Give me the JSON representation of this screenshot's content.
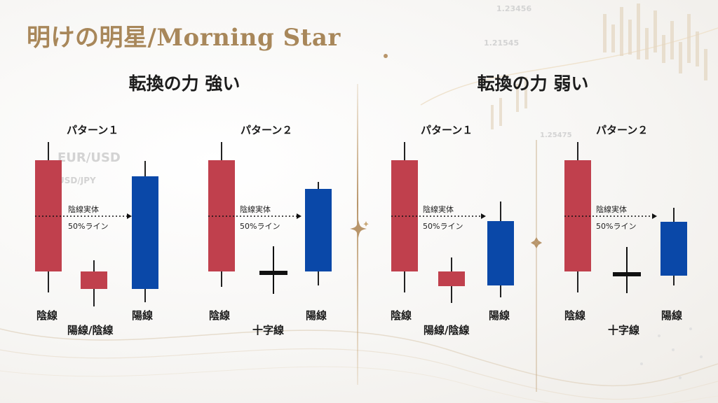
{
  "title": "明けの明星/Morning Star",
  "sections": [
    {
      "heading": "転換の力 強い",
      "patterns": [
        {
          "name": "パターン１",
          "body_label": "陰線実体",
          "line_label": "50%ライン",
          "candle_labels": [
            "陰線",
            "陽線/陰線",
            "陽線"
          ]
        },
        {
          "name": "パターン２",
          "body_label": "陰線実体",
          "line_label": "50%ライン",
          "candle_labels": [
            "陰線",
            "十字線",
            "陽線"
          ]
        }
      ]
    },
    {
      "heading": "転換の力 弱い",
      "patterns": [
        {
          "name": "パターン１",
          "body_label": "陰線実体",
          "line_label": "50%ライン",
          "candle_labels": [
            "陰線",
            "陽線/陰線",
            "陽線"
          ]
        },
        {
          "name": "パターン２",
          "body_label": "陰線実体",
          "line_label": "50%ライン",
          "candle_labels": [
            "陰線",
            "十字線",
            "陽線"
          ]
        }
      ]
    }
  ],
  "colors": {
    "bearish": "#c0404d",
    "bullish": "#0a48a8",
    "doji": "#111111",
    "gold": "#b8956a",
    "wick": "#222222"
  },
  "background_labels": [
    "EUR/USD",
    "USD/JPY",
    "1.23456",
    "1.21545",
    "1.25475"
  ],
  "icons": [
    "sparkle-icon",
    "diamond-ornament-icon"
  ]
}
